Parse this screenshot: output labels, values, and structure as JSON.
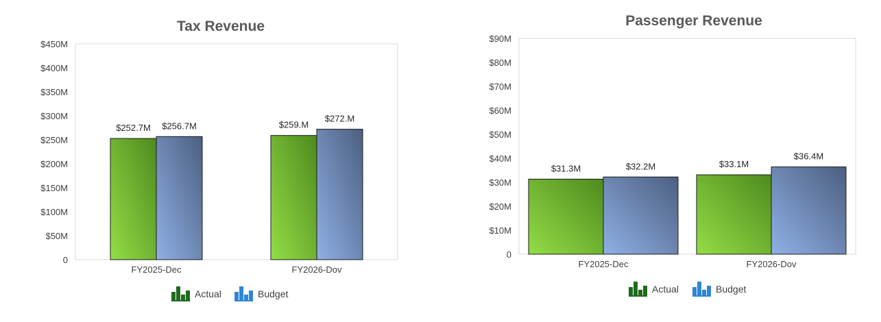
{
  "colors": {
    "actual_dark": "#4f8a1f",
    "actual_light": "#93dd45",
    "budget_dark": "#4c5f80",
    "budget_light": "#8fb0e6",
    "actual_icon": "#1e6b1e",
    "budget_icon": "#2f86d8",
    "plot_border": "#d9d9d9",
    "title": "#595959"
  },
  "legend": [
    {
      "key": "actual",
      "label": "Actual",
      "icon": "bar-chart-icon-green"
    },
    {
      "key": "budget",
      "label": "Budget",
      "icon": "bar-chart-icon-blue"
    }
  ],
  "chart_data": [
    {
      "type": "bar",
      "title": "Tax Revenue",
      "categories": [
        "FY2025-Dec",
        "FY2026-Dov"
      ],
      "series": [
        {
          "name": "Actual",
          "values": [
            252.7,
            259.0
          ],
          "labels": [
            "$252.7M",
            "$259.M"
          ]
        },
        {
          "name": "Budget",
          "values": [
            256.7,
            272.0
          ],
          "labels": [
            "$256.7M",
            "$272.M"
          ]
        }
      ],
      "ylim": [
        0,
        450
      ],
      "yticks": [
        0,
        50,
        100,
        150,
        200,
        250,
        300,
        350,
        400,
        450
      ],
      "ytick_labels": [
        "0",
        "$50M",
        "$100M",
        "$150M",
        "$200M",
        "$250M",
        "$300M",
        "$350M",
        "$400M",
        "$450M"
      ],
      "xlabel": "",
      "ylabel": "",
      "grid": false,
      "legend_position": "bottom"
    },
    {
      "type": "bar",
      "title": "Passenger Revenue",
      "categories": [
        "FY2025-Dec",
        "FY2026-Dov"
      ],
      "series": [
        {
          "name": "Actual",
          "values": [
            31.3,
            33.1
          ],
          "labels": [
            "$31.3M",
            "$33.1M"
          ]
        },
        {
          "name": "Budget",
          "values": [
            32.2,
            36.4
          ],
          "labels": [
            "$32.2M",
            "$36.4M"
          ]
        }
      ],
      "ylim": [
        0,
        90
      ],
      "yticks": [
        0,
        10,
        20,
        30,
        40,
        50,
        60,
        70,
        80,
        90
      ],
      "ytick_labels": [
        "0",
        "$10M",
        "$20M",
        "$30M",
        "$40M",
        "$50M",
        "$60M",
        "$70M",
        "$80M",
        "$90M"
      ],
      "xlabel": "",
      "ylabel": "",
      "grid": false,
      "legend_position": "bottom"
    }
  ]
}
